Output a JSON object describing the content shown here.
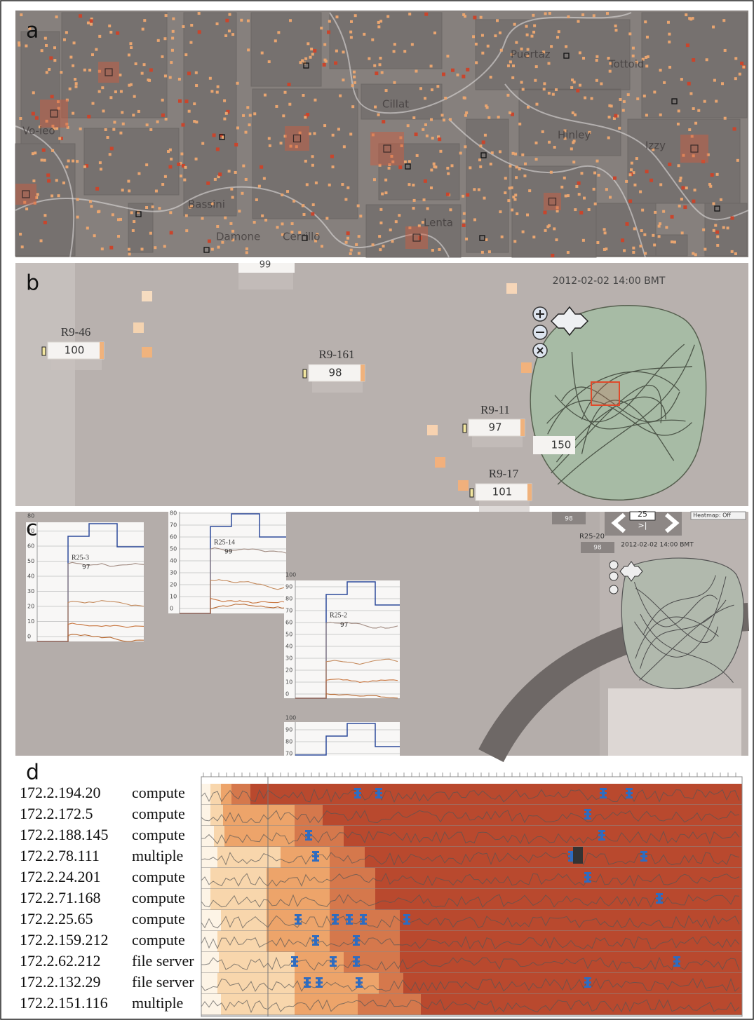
{
  "panel_a": {
    "label": "a",
    "places": [
      "Vo-leo",
      "Puertaz",
      "Tottoid",
      "Cillat",
      "Hinley",
      "Izzy",
      "Bassini",
      "Damone",
      "Cerrillo",
      "Lenta"
    ]
  },
  "panel_b": {
    "label": "b",
    "timestamp": "2012-02-02 14:00 BMT",
    "stations": [
      {
        "name": "R9-46",
        "value": 100
      },
      {
        "name": "R9-161",
        "value": 98
      },
      {
        "name": "R9-11",
        "value": 97
      },
      {
        "name": "R9-17",
        "value": 101
      }
    ],
    "partial": [
      99,
      150
    ]
  },
  "panel_c": {
    "label": "c",
    "timestamp": "2012-02-02 14:00 BMT",
    "heatmap": "Heatmap: Off",
    "page": 25,
    "next": ">|",
    "axis_ticks": [
      100,
      90,
      80,
      70,
      60,
      50,
      40,
      30,
      20,
      10,
      0
    ],
    "charts": [
      {
        "name": "R25-3",
        "value": 97
      },
      {
        "name": "R25-14",
        "value": 99
      },
      {
        "name": "R25-2",
        "value": 97
      }
    ],
    "station": {
      "name": "R25-20",
      "value": 98
    },
    "partial": [
      98
    ]
  },
  "panel_d": {
    "label": "d",
    "hosts": [
      {
        "ip": "172.2.194.20",
        "role": "compute"
      },
      {
        "ip": "172.2.172.5",
        "role": "compute"
      },
      {
        "ip": "172.2.188.145",
        "role": "compute"
      },
      {
        "ip": "172.2.78.111",
        "role": "multiple"
      },
      {
        "ip": "172.2.24.201",
        "role": "compute"
      },
      {
        "ip": "172.2.71.168",
        "role": "compute"
      },
      {
        "ip": "172.2.25.65",
        "role": "compute"
      },
      {
        "ip": "172.2.159.212",
        "role": "compute"
      },
      {
        "ip": "172.2.62.212",
        "role": "file server"
      },
      {
        "ip": "172.2.132.29",
        "role": "file server"
      },
      {
        "ip": "172.2.151.116",
        "role": "multiple"
      }
    ]
  }
}
